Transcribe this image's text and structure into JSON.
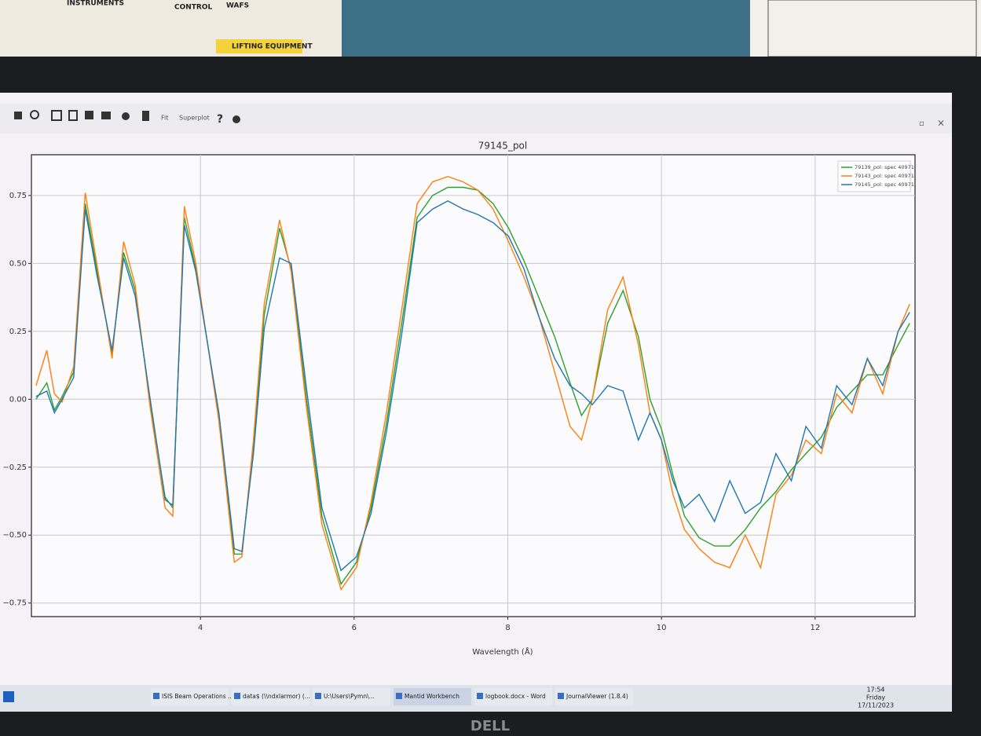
{
  "wall": {
    "papers": [
      "INSTRUMENTS",
      "CONTROL",
      "WAFS",
      "LIFTING EQUIPMENT"
    ]
  },
  "toolbar": {
    "buttons": [
      "Fit",
      "Superplot"
    ]
  },
  "chart_data": {
    "type": "line",
    "title": "79145_pol",
    "xlabel": "Wavelength (Å)",
    "xlim": [
      1.8,
      13.3
    ],
    "xticks": [
      4,
      6,
      8,
      10,
      12
    ],
    "ylim": [
      -0.8,
      0.9
    ],
    "yticks": [
      {
        "value": -0.75,
        "label": "−0.75"
      },
      {
        "value": -0.5,
        "label": "−0.50"
      },
      {
        "value": -0.25,
        "label": "−0.25"
      },
      {
        "value": 0,
        "label": "0.00"
      },
      {
        "value": 0.25,
        "label": "0.25"
      },
      {
        "value": 0.5,
        "label": "0.50"
      },
      {
        "value": 0.75,
        "label": "0.75"
      }
    ],
    "grid": true,
    "legend": "upper right",
    "x": [
      1.86,
      2.0,
      2.1,
      2.2,
      2.35,
      2.5,
      2.65,
      2.85,
      3.0,
      3.15,
      3.34,
      3.54,
      3.64,
      3.79,
      3.94,
      4.24,
      4.44,
      4.54,
      4.69,
      4.83,
      5.03,
      5.18,
      5.38,
      5.58,
      5.83,
      6.03,
      6.22,
      6.42,
      6.62,
      6.82,
      7.02,
      7.22,
      7.42,
      7.61,
      7.81,
      8.01,
      8.21,
      8.41,
      8.61,
      8.81,
      8.96,
      9.1,
      9.3,
      9.5,
      9.7,
      9.85,
      10.0,
      10.15,
      10.3,
      10.49,
      10.69,
      10.89,
      11.09,
      11.29,
      11.49,
      11.69,
      11.88,
      12.08,
      12.28,
      12.48,
      12.68,
      12.88,
      13.08,
      13.23
    ],
    "series": [
      {
        "name": "79139_pol: spec 40971",
        "color": "#2ca02c",
        "values": [
          0,
          0.06,
          -0.04,
          0.01,
          0.1,
          0.72,
          0.48,
          0.17,
          0.54,
          0.4,
          0,
          -0.36,
          -0.4,
          0.67,
          0.48,
          -0.06,
          -0.57,
          -0.57,
          -0.17,
          0.31,
          0.63,
          0.48,
          0,
          -0.43,
          -0.68,
          -0.6,
          -0.4,
          -0.09,
          0.28,
          0.67,
          0.75,
          0.78,
          0.78,
          0.77,
          0.72,
          0.63,
          0.51,
          0.37,
          0.23,
          0.06,
          -0.06,
          0,
          0.28,
          0.4,
          0.23,
          0,
          -0.11,
          -0.28,
          -0.43,
          -0.51,
          -0.54,
          -0.54,
          -0.48,
          -0.4,
          -0.34,
          -0.26,
          -0.2,
          -0.14,
          -0.03,
          0.03,
          0.09,
          0.09,
          0.2,
          0.28
        ]
      },
      {
        "name": "79143_pol: spec 40971",
        "color": "#ff7f0e",
        "values": [
          0.05,
          0.18,
          0.02,
          -0.01,
          0.12,
          0.76,
          0.5,
          0.15,
          0.58,
          0.42,
          -0.02,
          -0.4,
          -0.43,
          0.71,
          0.5,
          -0.08,
          -0.6,
          -0.58,
          -0.15,
          0.35,
          0.66,
          0.47,
          -0.03,
          -0.46,
          -0.7,
          -0.62,
          -0.38,
          -0.05,
          0.33,
          0.72,
          0.8,
          0.82,
          0.8,
          0.77,
          0.7,
          0.58,
          0.45,
          0.3,
          0.1,
          -0.1,
          -0.15,
          0,
          0.33,
          0.45,
          0.2,
          -0.05,
          -0.15,
          -0.35,
          -0.48,
          -0.55,
          -0.6,
          -0.62,
          -0.5,
          -0.62,
          -0.35,
          -0.28,
          -0.15,
          -0.2,
          0.02,
          -0.05,
          0.15,
          0.02,
          0.25,
          0.35
        ]
      },
      {
        "name": "79145_pol: spec 40971",
        "color": "#1f77b4",
        "values": [
          0.01,
          0.03,
          -0.05,
          0,
          0.08,
          0.7,
          0.46,
          0.18,
          0.52,
          0.38,
          0.01,
          -0.37,
          -0.39,
          0.64,
          0.47,
          -0.05,
          -0.55,
          -0.56,
          -0.2,
          0.26,
          0.52,
          0.5,
          0.04,
          -0.4,
          -0.63,
          -0.58,
          -0.42,
          -0.12,
          0.24,
          0.65,
          0.7,
          0.73,
          0.7,
          0.68,
          0.65,
          0.6,
          0.48,
          0.3,
          0.15,
          0.05,
          0.02,
          -0.02,
          0.05,
          0.03,
          -0.15,
          -0.05,
          -0.15,
          -0.3,
          -0.4,
          -0.35,
          -0.45,
          -0.3,
          -0.42,
          -0.38,
          -0.2,
          -0.3,
          -0.1,
          -0.18,
          0.05,
          -0.02,
          0.15,
          0.05,
          0.25,
          0.32
        ]
      }
    ]
  },
  "taskbar": {
    "items": [
      "ISIS Beam Operations ...",
      "data$ (\\\\ndxlarmor) (...",
      "U:\\Users\\Pymn\\...",
      "Mantid Workbench",
      "logbook.docx - Word",
      "JournalViewer (1.8.4)"
    ],
    "clock": {
      "time": "17:54",
      "day": "Friday",
      "date": "17/11/2023"
    }
  },
  "monitor": {
    "brand": "DELL"
  }
}
